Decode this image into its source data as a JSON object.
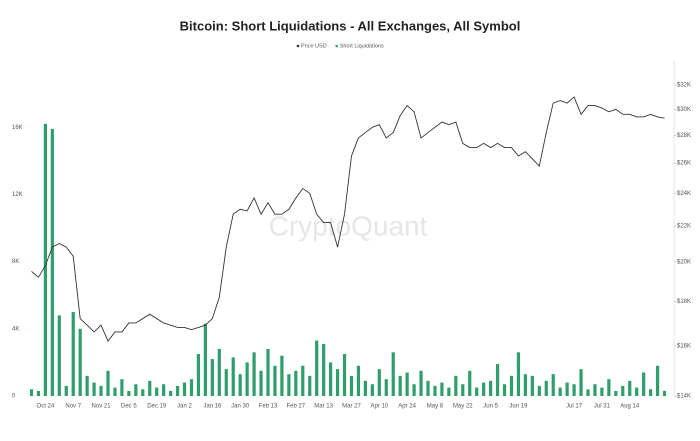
{
  "chart_data": {
    "type": "combo",
    "title": "Bitcoin: Short Liquidations - All Exchanges, All Symbol",
    "watermark": "CryptoQuant",
    "categories": [
      null,
      null,
      "Oct 24",
      null,
      null,
      null,
      "Nov 7",
      null,
      null,
      null,
      "Nov 21",
      null,
      null,
      null,
      "Dec 5",
      null,
      null,
      null,
      "Dec 19",
      null,
      null,
      null,
      "Jan 2",
      null,
      null,
      null,
      "Jan 16",
      null,
      null,
      null,
      "Jan 30",
      null,
      null,
      null,
      "Feb 13",
      null,
      null,
      null,
      "Feb 27",
      null,
      null,
      null,
      "Mar 13",
      null,
      null,
      null,
      "Mar 27",
      null,
      null,
      null,
      "Apr 10",
      null,
      null,
      null,
      "Apr 24",
      null,
      null,
      null,
      "May 8",
      null,
      null,
      null,
      "May 22",
      null,
      null,
      null,
      "Jun 5",
      null,
      null,
      null,
      "Jun 19",
      null,
      null,
      null,
      null,
      null,
      null,
      null,
      "Jul 17",
      null,
      null,
      null,
      "Jul 31",
      null,
      null,
      null,
      "Aug 14",
      null,
      null,
      null,
      null,
      null
    ],
    "series": [
      {
        "name": "Price USD",
        "type": "line",
        "axis": "y2",
        "color": "#333333",
        "values": [
          19500,
          19200,
          19800,
          20800,
          21000,
          20800,
          20300,
          17200,
          16900,
          16600,
          16900,
          16200,
          16600,
          16600,
          17000,
          17000,
          17200,
          17400,
          17200,
          17000,
          16900,
          16800,
          16800,
          16700,
          16800,
          16900,
          17200,
          18200,
          20800,
          22700,
          23000,
          22900,
          23700,
          22700,
          23400,
          22700,
          22700,
          23000,
          23700,
          24300,
          24000,
          22700,
          22200,
          22200,
          20800,
          22700,
          26500,
          27800,
          28200,
          28600,
          28800,
          27800,
          28200,
          29500,
          30300,
          29800,
          27800,
          28200,
          28600,
          29000,
          28800,
          29000,
          27400,
          27100,
          27100,
          27400,
          27100,
          27400,
          27100,
          27100,
          26500,
          26800,
          26300,
          25800,
          28200,
          30500,
          30700,
          30500,
          31000,
          29600,
          30300,
          30300,
          30100,
          29800,
          30000,
          29600,
          29600,
          29400,
          29400,
          29600,
          29400,
          29300
        ]
      },
      {
        "name": "Short Liquidations",
        "type": "bar",
        "color": "#2f9e6b",
        "values": [
          400,
          300,
          16200,
          15900,
          4800,
          600,
          5000,
          4000,
          1200,
          800,
          600,
          1500,
          500,
          1000,
          300,
          700,
          400,
          900,
          500,
          700,
          300,
          600,
          800,
          1000,
          2500,
          4300,
          2200,
          2800,
          1600,
          2300,
          1300,
          2000,
          2600,
          1500,
          2800,
          1800,
          2400,
          1300,
          1500,
          1800,
          1200,
          3300,
          3100,
          2000,
          1600,
          2500,
          1200,
          1800,
          900,
          700,
          1600,
          1000,
          2600,
          1200,
          1400,
          700,
          1500,
          900,
          600,
          800,
          500,
          1200,
          700,
          1500,
          500,
          800,
          900,
          1900,
          700,
          1200,
          2600,
          1300,
          1200,
          600,
          900,
          1300,
          500,
          800,
          700,
          1600,
          400,
          700,
          500,
          1000,
          300,
          600,
          900,
          500,
          1400,
          400,
          1800,
          300
        ]
      }
    ],
    "ylim": [
      0,
      20000
    ],
    "yticks": [
      {
        "value": 0,
        "label": "0"
      },
      {
        "value": 4000,
        "label": "4K"
      },
      {
        "value": 8000,
        "label": "8K"
      },
      {
        "value": 12000,
        "label": "12K"
      },
      {
        "value": 16000,
        "label": "16K"
      }
    ],
    "y2lim": [
      14000,
      34200
    ],
    "y2log": true,
    "y2ticks": [
      {
        "value": 14000,
        "label": "$14K"
      },
      {
        "value": 16000,
        "label": "$16K"
      },
      {
        "value": 18000,
        "label": "$18K"
      },
      {
        "value": 20000,
        "label": "$20K"
      },
      {
        "value": 22000,
        "label": "$22K"
      },
      {
        "value": 24000,
        "label": "$24K"
      },
      {
        "value": 26000,
        "label": "$26K"
      },
      {
        "value": 28000,
        "label": "$28K"
      },
      {
        "value": 30000,
        "label": "$30K"
      },
      {
        "value": 32000,
        "label": "$32K"
      }
    ],
    "legend": "top"
  }
}
